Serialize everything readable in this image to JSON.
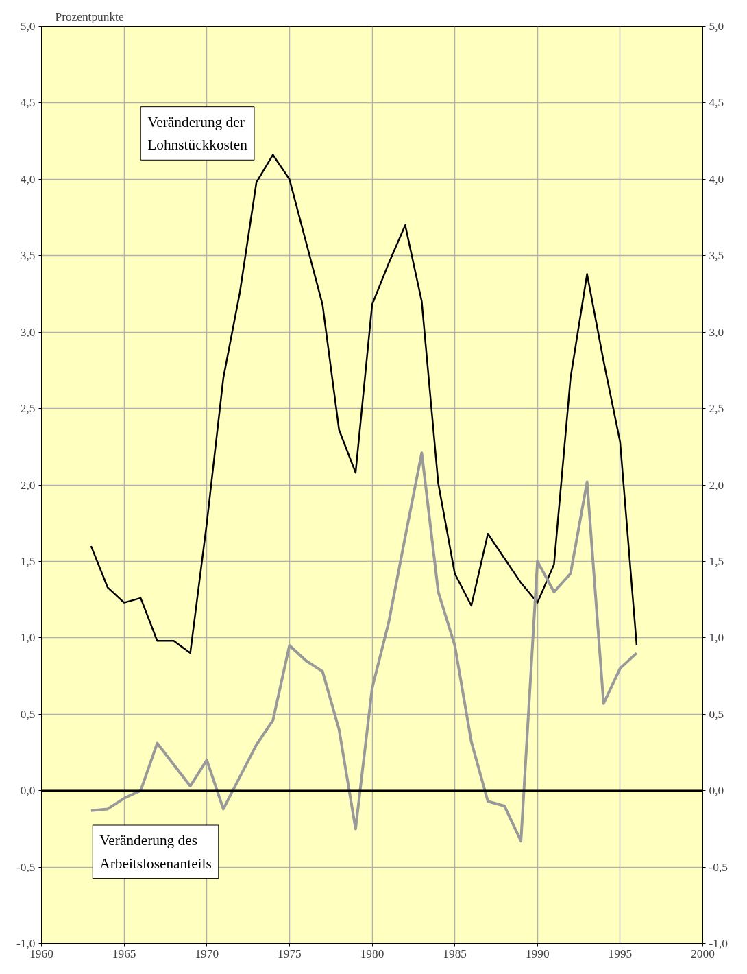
{
  "chart_data": {
    "type": "line",
    "ylabel": "Prozentpunkte",
    "x": [
      1963,
      1964,
      1965,
      1966,
      1967,
      1968,
      1969,
      1970,
      1971,
      1972,
      1973,
      1974,
      1975,
      1976,
      1977,
      1978,
      1979,
      1980,
      1981,
      1982,
      1983,
      1984,
      1985,
      1986,
      1987,
      1988,
      1989,
      1990,
      1991,
      1992,
      1993,
      1994,
      1995,
      1996
    ],
    "series": [
      {
        "name": "Veränderung der Lohnstückkosten",
        "color": "#000000",
        "values": [
          1.6,
          1.33,
          1.23,
          1.26,
          0.98,
          0.98,
          0.9,
          1.75,
          2.7,
          3.26,
          3.98,
          4.16,
          4.0,
          3.59,
          3.18,
          2.36,
          2.08,
          3.18,
          3.45,
          3.7,
          3.2,
          2.01,
          1.42,
          1.21,
          1.68,
          1.52,
          1.36,
          1.23,
          1.48,
          2.7,
          3.38,
          2.81,
          2.28,
          0.95
        ]
      },
      {
        "name": "Veränderung des Arbeitslosenanteils",
        "color": "#999999",
        "values": [
          -0.13,
          -0.12,
          -0.05,
          0.0,
          0.31,
          0.17,
          0.03,
          0.2,
          -0.12,
          0.09,
          0.3,
          0.46,
          0.95,
          0.85,
          0.78,
          0.4,
          -0.25,
          0.67,
          1.1,
          1.66,
          2.21,
          1.3,
          0.95,
          0.32,
          -0.07,
          -0.1,
          -0.33,
          1.5,
          1.3,
          1.42,
          2.02,
          0.57,
          0.8,
          0.9
        ]
      }
    ],
    "xlim": [
      1960,
      2000
    ],
    "xticks": [
      1960,
      1965,
      1970,
      1975,
      1980,
      1985,
      1990,
      1995,
      2000
    ],
    "ylim": [
      -1,
      5
    ],
    "yticks": [
      {
        "value": -1,
        "label": "-1,0"
      },
      {
        "value": -0.5,
        "label": "-0,5"
      },
      {
        "value": 0,
        "label": "0,0"
      },
      {
        "value": 0.5,
        "label": "0,5"
      },
      {
        "value": 1,
        "label": "1,0"
      },
      {
        "value": 1.5,
        "label": "1,5"
      },
      {
        "value": 2,
        "label": "2,0"
      },
      {
        "value": 2.5,
        "label": "2,5"
      },
      {
        "value": 3,
        "label": "3,0"
      },
      {
        "value": 3.5,
        "label": "3,5"
      },
      {
        "value": 4,
        "label": "4,0"
      },
      {
        "value": 4.5,
        "label": "4,5"
      },
      {
        "value": 5,
        "label": "5,0"
      }
    ],
    "y2lim": [
      -1,
      5
    ],
    "y2ticks": [
      {
        "value": -1,
        "label": "-1,0"
      },
      {
        "value": -0.5,
        "label": "-0,5"
      },
      {
        "value": 0,
        "label": "0,0"
      },
      {
        "value": 0.5,
        "label": "0,5"
      },
      {
        "value": 1,
        "label": "1,0"
      },
      {
        "value": 1.5,
        "label": "1,5"
      },
      {
        "value": 2,
        "label": "2,0"
      },
      {
        "value": 2.5,
        "label": "2,5"
      },
      {
        "value": 3,
        "label": "3,0"
      },
      {
        "value": 3.5,
        "label": "3,5"
      },
      {
        "value": 4,
        "label": "4,0"
      },
      {
        "value": 4.5,
        "label": "4,5"
      },
      {
        "value": 5,
        "label": "5,0"
      }
    ],
    "ref_lines": [
      {
        "axis": "y",
        "value": 0,
        "color": "#000000"
      }
    ],
    "grid": true,
    "marker": "none",
    "line_style": "solid"
  }
}
